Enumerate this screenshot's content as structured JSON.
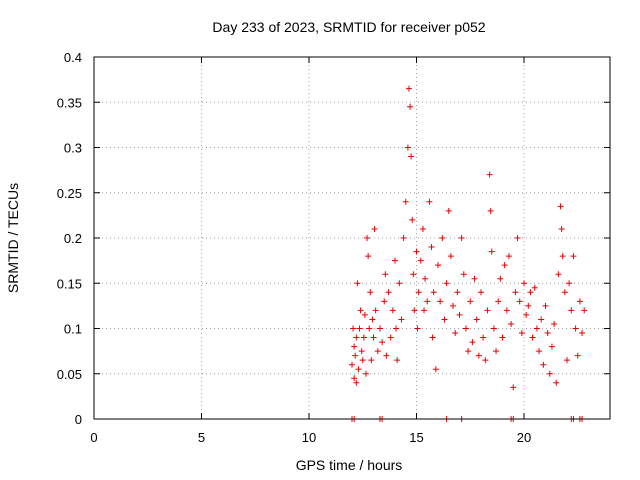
{
  "chart_data": {
    "type": "scatter",
    "title": "Day 233 of 2023, SRMTID for receiver p052",
    "xlabel": "GPS time / hours",
    "ylabel": "SRMTID / TECUs",
    "xlim": [
      0,
      24
    ],
    "ylim": [
      0,
      0.4
    ],
    "xticks": [
      0,
      5,
      10,
      15,
      20
    ],
    "xtick_labels": [
      "0",
      "5",
      "10",
      "15",
      "20"
    ],
    "yticks": [
      0,
      0.05,
      0.1,
      0.15,
      0.2,
      0.25,
      0.3,
      0.35,
      0.4
    ],
    "ytick_labels": [
      "0",
      "0.05",
      "0.1",
      "0.15",
      "0.2",
      "0.25",
      "0.3",
      "0.35",
      "0.4"
    ],
    "grid": true,
    "marker": "+",
    "series_color": "#ee0000",
    "series": [
      {
        "name": "SRMTID",
        "points": [
          [
            12.0,
            0.06
          ],
          [
            12.05,
            0.1
          ],
          [
            12.1,
            0.045
          ],
          [
            12.1,
            0.08
          ],
          [
            12.15,
            0.07
          ],
          [
            12.2,
            0.09
          ],
          [
            12.2,
            0.04
          ],
          [
            12.25,
            0.15
          ],
          [
            12.3,
            0.055
          ],
          [
            12.35,
            0.1
          ],
          [
            12.4,
            0.12
          ],
          [
            12.45,
            0.075
          ],
          [
            12.5,
            0.065
          ],
          [
            12.55,
            0.09
          ],
          [
            12.6,
            0.115
          ],
          [
            12.65,
            0.05
          ],
          [
            12.7,
            0.2
          ],
          [
            12.75,
            0.18
          ],
          [
            12.8,
            0.1
          ],
          [
            12.85,
            0.14
          ],
          [
            12.9,
            0.065
          ],
          [
            12.95,
            0.11
          ],
          [
            13.0,
            0.09
          ],
          [
            13.05,
            0.21
          ],
          [
            13.1,
            0.12
          ],
          [
            13.2,
            0.075
          ],
          [
            13.3,
            0.1
          ],
          [
            13.4,
            0.085
          ],
          [
            13.5,
            0.13
          ],
          [
            13.55,
            0.16
          ],
          [
            13.6,
            0.07
          ],
          [
            13.7,
            0.14
          ],
          [
            13.8,
            0.09
          ],
          [
            13.9,
            0.12
          ],
          [
            14.0,
            0.175
          ],
          [
            14.05,
            0.1
          ],
          [
            14.1,
            0.065
          ],
          [
            14.2,
            0.15
          ],
          [
            14.3,
            0.11
          ],
          [
            14.4,
            0.2
          ],
          [
            14.5,
            0.24
          ],
          [
            14.6,
            0.3
          ],
          [
            14.65,
            0.365
          ],
          [
            14.7,
            0.345
          ],
          [
            14.75,
            0.29
          ],
          [
            14.8,
            0.22
          ],
          [
            14.85,
            0.16
          ],
          [
            14.9,
            0.12
          ],
          [
            15.0,
            0.185
          ],
          [
            15.05,
            0.1
          ],
          [
            15.1,
            0.14
          ],
          [
            15.2,
            0.175
          ],
          [
            15.3,
            0.21
          ],
          [
            15.35,
            0.12
          ],
          [
            15.4,
            0.155
          ],
          [
            15.5,
            0.13
          ],
          [
            15.6,
            0.24
          ],
          [
            15.7,
            0.19
          ],
          [
            15.75,
            0.09
          ],
          [
            15.8,
            0.14
          ],
          [
            15.9,
            0.055
          ],
          [
            16.0,
            0.17
          ],
          [
            16.1,
            0.13
          ],
          [
            16.2,
            0.2
          ],
          [
            16.3,
            0.11
          ],
          [
            16.4,
            0.15
          ],
          [
            16.5,
            0.23
          ],
          [
            16.6,
            0.18
          ],
          [
            16.7,
            0.125
          ],
          [
            16.8,
            0.095
          ],
          [
            16.9,
            0.14
          ],
          [
            17.0,
            0.115
          ],
          [
            17.1,
            0.2
          ],
          [
            17.2,
            0.16
          ],
          [
            17.3,
            0.1
          ],
          [
            17.4,
            0.075
          ],
          [
            17.5,
            0.13
          ],
          [
            17.6,
            0.085
          ],
          [
            17.7,
            0.155
          ],
          [
            17.8,
            0.11
          ],
          [
            17.9,
            0.07
          ],
          [
            18.0,
            0.14
          ],
          [
            18.1,
            0.09
          ],
          [
            18.2,
            0.065
          ],
          [
            18.3,
            0.12
          ],
          [
            18.4,
            0.27
          ],
          [
            18.45,
            0.23
          ],
          [
            18.5,
            0.185
          ],
          [
            18.6,
            0.1
          ],
          [
            18.7,
            0.075
          ],
          [
            18.8,
            0.13
          ],
          [
            18.9,
            0.155
          ],
          [
            19.0,
            0.09
          ],
          [
            19.1,
            0.17
          ],
          [
            19.2,
            0.12
          ],
          [
            19.3,
            0.18
          ],
          [
            19.4,
            0.105
          ],
          [
            19.5,
            0.035
          ],
          [
            19.6,
            0.14
          ],
          [
            19.7,
            0.2
          ],
          [
            19.8,
            0.13
          ],
          [
            19.9,
            0.095
          ],
          [
            20.0,
            0.15
          ],
          [
            20.1,
            0.115
          ],
          [
            20.2,
            0.125
          ],
          [
            20.3,
            0.14
          ],
          [
            20.4,
            0.09
          ],
          [
            20.5,
            0.145
          ],
          [
            20.6,
            0.1
          ],
          [
            20.7,
            0.075
          ],
          [
            20.8,
            0.11
          ],
          [
            20.9,
            0.06
          ],
          [
            21.0,
            0.125
          ],
          [
            21.1,
            0.095
          ],
          [
            21.2,
            0.05
          ],
          [
            21.3,
            0.08
          ],
          [
            21.4,
            0.105
          ],
          [
            21.5,
            0.04
          ],
          [
            21.6,
            0.16
          ],
          [
            21.7,
            0.235
          ],
          [
            21.75,
            0.21
          ],
          [
            21.8,
            0.18
          ],
          [
            21.9,
            0.14
          ],
          [
            22.0,
            0.065
          ],
          [
            22.1,
            0.15
          ],
          [
            22.2,
            0.12
          ],
          [
            22.3,
            0.18
          ],
          [
            22.4,
            0.1
          ],
          [
            22.5,
            0.07
          ],
          [
            22.6,
            0.13
          ],
          [
            22.7,
            0.095
          ],
          [
            22.8,
            0.12
          ]
        ]
      }
    ],
    "baseline_markers_x": [
      12.0,
      12.1,
      13.3,
      13.4,
      16.4,
      17.1,
      19.4,
      19.5,
      22.2,
      22.3,
      22.6,
      22.7
    ]
  }
}
